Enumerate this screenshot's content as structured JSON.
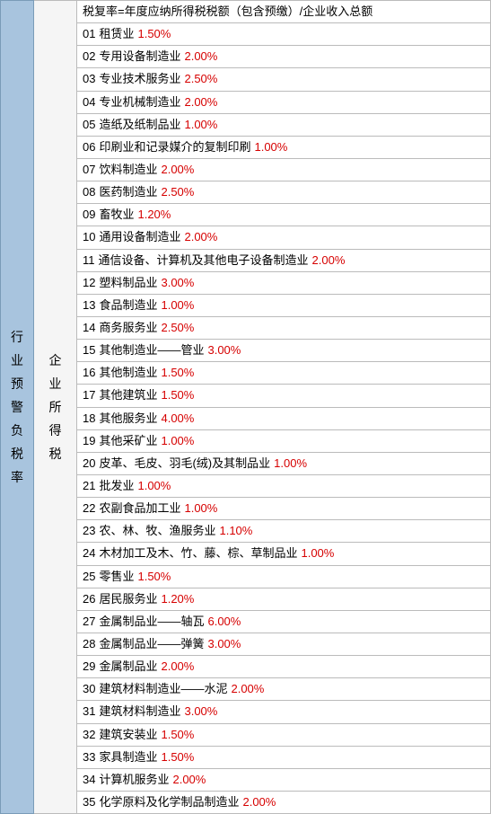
{
  "left_label_chars": [
    "行",
    "业",
    "预",
    "警",
    "负",
    "税",
    "率"
  ],
  "mid_label_chars": [
    "企",
    "业",
    "所",
    "得",
    "税"
  ],
  "header": "税复率=年度应纳所得税税额（包含预缴）/企业收入总额",
  "colors": {
    "rate_color": "#d60000",
    "text_color": "#000000",
    "left_bg": "#a8c4de",
    "border": "#bbbbbb"
  },
  "rows": [
    {
      "num": "01",
      "name": "租赁业",
      "rate": "1.50%"
    },
    {
      "num": "02",
      "name": "专用设备制造业",
      "rate": "2.00%"
    },
    {
      "num": "03",
      "name": "专业技术服务业",
      "rate": "2.50%"
    },
    {
      "num": "04",
      "name": "专业机械制造业",
      "rate": "2.00%"
    },
    {
      "num": "05",
      "name": "造纸及纸制品业",
      "rate": "1.00%"
    },
    {
      "num": "06",
      "name": "印刷业和记录媒介的复制印刷",
      "rate": "1.00%"
    },
    {
      "num": "07",
      "name": "饮料制造业",
      "rate": "2.00%"
    },
    {
      "num": "08",
      "name": "医药制造业",
      "rate": "2.50%"
    },
    {
      "num": "09",
      "name": "畜牧业",
      "rate": "1.20%"
    },
    {
      "num": "10",
      "name": "通用设备制造业",
      "rate": "2.00%"
    },
    {
      "num": "11",
      "name": "通信设备、计算机及其他电子设备制造业",
      "rate": "2.00%"
    },
    {
      "num": "12",
      "name": "塑料制品业",
      "rate": "3.00%"
    },
    {
      "num": "13",
      "name": "食品制造业",
      "rate": "1.00%"
    },
    {
      "num": "14",
      "name": "商务服务业",
      "rate": "2.50%"
    },
    {
      "num": "15",
      "name": "其他制造业——管业",
      "rate": "3.00%"
    },
    {
      "num": "16",
      "name": "其他制造业",
      "rate": "1.50%"
    },
    {
      "num": "17",
      "name": "其他建筑业",
      "rate": "1.50%"
    },
    {
      "num": "18",
      "name": "其他服务业",
      "rate": "4.00%"
    },
    {
      "num": "19",
      "name": "其他采矿业",
      "rate": "1.00%"
    },
    {
      "num": "20",
      "name": "皮革、毛皮、羽毛(绒)及其制品业",
      "rate": "1.00%"
    },
    {
      "num": "21",
      "name": "批发业",
      "rate": "1.00%"
    },
    {
      "num": "22",
      "name": "农副食品加工业",
      "rate": "1.00%"
    },
    {
      "num": "23",
      "name": "农、林、牧、渔服务业",
      "rate": "1.10%"
    },
    {
      "num": "24",
      "name": "木材加工及木、竹、藤、棕、草制品业",
      "rate": "1.00%"
    },
    {
      "num": "25",
      "name": "零售业",
      "rate": "1.50%"
    },
    {
      "num": "26",
      "name": "居民服务业",
      "rate": "1.20%"
    },
    {
      "num": "27",
      "name": "金属制品业——轴瓦",
      "rate": "6.00%"
    },
    {
      "num": "28",
      "name": "金属制品业——弹簧",
      "rate": "3.00%"
    },
    {
      "num": "29",
      "name": "金属制品业",
      "rate": "2.00%"
    },
    {
      "num": "30",
      "name": "建筑材料制造业——水泥",
      "rate": "2.00%"
    },
    {
      "num": "31",
      "name": "建筑材料制造业",
      "rate": "3.00%"
    },
    {
      "num": "32",
      "name": "建筑安装业",
      "rate": "1.50%"
    },
    {
      "num": "33",
      "name": "家具制造业",
      "rate": "1.50%"
    },
    {
      "num": "34",
      "name": "计算机服务业",
      "rate": "2.00%"
    },
    {
      "num": "35",
      "name": "化学原料及化学制品制造业",
      "rate": "2.00%"
    }
  ]
}
